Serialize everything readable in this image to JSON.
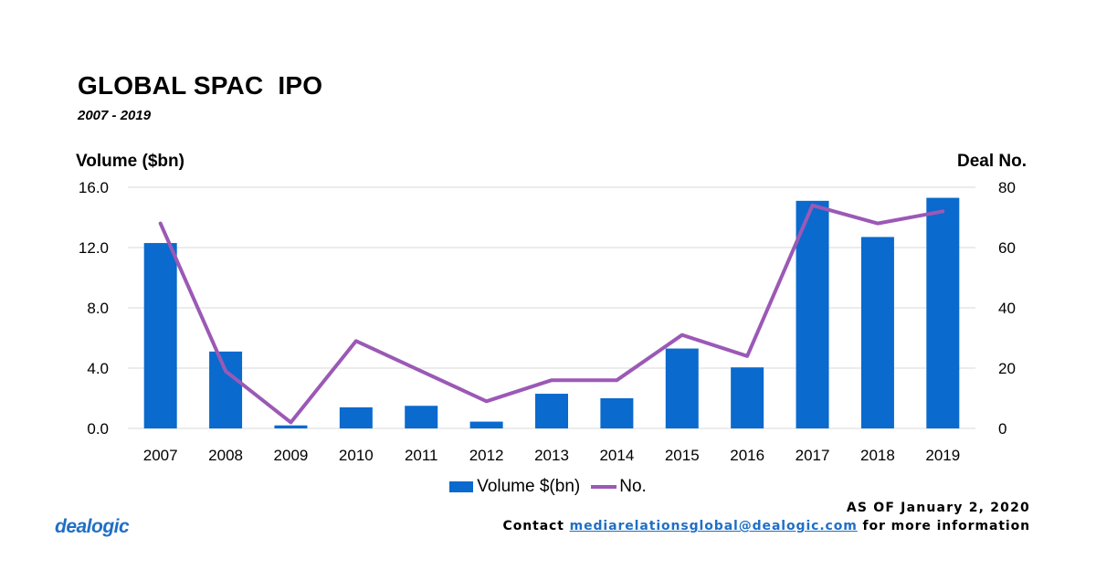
{
  "colors": {
    "bar": "#0a6acd",
    "line": "#9b59b6",
    "grid": "#d9d9d9",
    "link": "#1f6fc5"
  },
  "chart_data": {
    "type": "bar",
    "title": "GLOBAL SPAC  IPO",
    "subtitle": "2007 - 2019",
    "ylabel_left": "Volume ($bn)",
    "ylabel_right": "Deal No.",
    "categories": [
      "2007",
      "2008",
      "2009",
      "2010",
      "2011",
      "2012",
      "2013",
      "2014",
      "2015",
      "2016",
      "2017",
      "2018",
      "2019"
    ],
    "series": [
      {
        "name": "Volume $(bn)",
        "type": "bar",
        "axis": "left",
        "values": [
          12.3,
          5.1,
          0.2,
          1.4,
          1.5,
          0.45,
          2.3,
          2.0,
          5.3,
          4.05,
          15.1,
          12.7,
          15.3
        ]
      },
      {
        "name": "No.",
        "type": "line",
        "axis": "right",
        "values": [
          68,
          19,
          2,
          29,
          19,
          9,
          16,
          16,
          31,
          24,
          74,
          68,
          72
        ]
      }
    ],
    "ylim_left": [
      0,
      16
    ],
    "ylim_right": [
      0,
      80
    ],
    "yticks_left": [
      "0.0",
      "4.0",
      "8.0",
      "12.0",
      "16.0"
    ],
    "yticks_right": [
      "0",
      "20",
      "40",
      "60",
      "80"
    ],
    "grid": true,
    "legend_position": "bottom"
  },
  "footer": {
    "logo": "dealogic",
    "as_of": "AS OF January 2, 2020",
    "contact_prefix": "Contact ",
    "contact_email": "mediarelationsglobal@dealogic.com",
    "contact_suffix": " for more information"
  }
}
